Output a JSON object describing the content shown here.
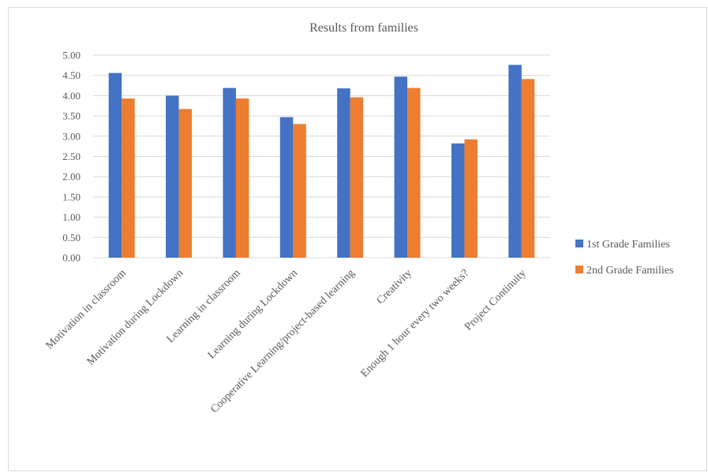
{
  "chart_data": {
    "type": "bar",
    "title": "Results from families",
    "xlabel": "",
    "ylabel": "",
    "ylim": [
      0,
      5
    ],
    "ytick_step": 0.5,
    "ytick_labels": [
      "0.00",
      "0.50",
      "1.00",
      "1.50",
      "2.00",
      "2.50",
      "3.00",
      "3.50",
      "4.00",
      "4.50",
      "5.00"
    ],
    "grid": true,
    "legend_position": "right",
    "categories": [
      "Motivation in classroom",
      "Motivation during Lockdown",
      "Learning in classroom",
      "Learning during Lockdown",
      "Cooperative Learning/project-based learning",
      "Creativity",
      "Enough 1 hour every two weeks?",
      "Project Continuity"
    ],
    "series": [
      {
        "name": "1st Grade Families",
        "color": "#4472c4",
        "values": [
          4.56,
          4.0,
          4.19,
          3.47,
          4.18,
          4.47,
          2.82,
          4.76
        ]
      },
      {
        "name": "2nd Grade Families",
        "color": "#ed7d31",
        "values": [
          3.93,
          3.67,
          3.93,
          3.3,
          3.96,
          4.19,
          2.92,
          4.41
        ]
      }
    ]
  }
}
